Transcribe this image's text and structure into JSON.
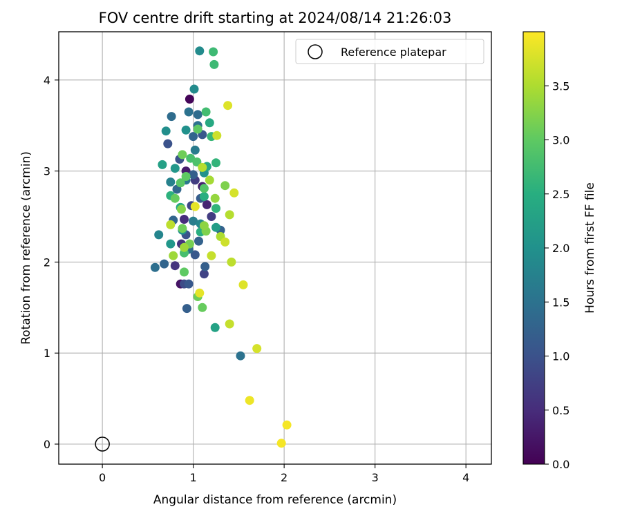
{
  "chart_data": {
    "type": "scatter",
    "title": "FOV centre drift starting at 2024/08/14 21:26:03",
    "xlabel": "Angular distance from reference (arcmin)",
    "ylabel": "Rotation from reference (arcmin)",
    "xlim": [
      -0.48,
      4.28
    ],
    "ylim": [
      -0.22,
      4.53
    ],
    "xticks": [
      0,
      1,
      2,
      3,
      4
    ],
    "yticks": [
      0,
      1,
      2,
      3,
      4
    ],
    "grid": true,
    "legend": {
      "position": "top-right",
      "entries": [
        "Reference platepar"
      ]
    },
    "reference_point": {
      "x": 0,
      "y": 0,
      "label": "Reference platepar"
    },
    "colorbar": {
      "label": "Hours from first FF file",
      "min": 0.0,
      "max": 4.0,
      "ticks": [
        "0.0",
        "0.5",
        "1.0",
        "1.5",
        "2.0",
        "2.5",
        "3.0",
        "3.5"
      ],
      "colormap": "viridis"
    },
    "series": [
      {
        "points": [
          [
            0.96,
            3.79,
            0.05
          ],
          [
            0.86,
            1.76,
            0.2
          ],
          [
            0.92,
            3.0,
            0.3
          ],
          [
            1.1,
            2.83,
            0.35
          ],
          [
            1.15,
            2.63,
            0.4
          ],
          [
            0.9,
            2.47,
            0.5
          ],
          [
            0.8,
            1.96,
            0.6
          ],
          [
            0.87,
            2.2,
            0.6
          ],
          [
            1.02,
            2.9,
            0.7
          ],
          [
            1.2,
            2.5,
            0.7
          ],
          [
            1.12,
            1.87,
            0.8
          ],
          [
            0.98,
            2.62,
            0.85
          ],
          [
            0.9,
            1.76,
            0.9
          ],
          [
            0.92,
            2.3,
            1.0
          ],
          [
            0.85,
            3.13,
            1.0
          ],
          [
            0.72,
            3.3,
            1.0
          ],
          [
            1.1,
            3.4,
            1.1
          ],
          [
            0.95,
            1.76,
            1.1
          ],
          [
            1.02,
            2.08,
            1.1
          ],
          [
            1.08,
            2.7,
            1.15
          ],
          [
            1.0,
            2.96,
            1.2
          ],
          [
            0.93,
            1.49,
            1.2
          ],
          [
            1.13,
            1.95,
            1.2
          ],
          [
            1.06,
            2.23,
            1.25
          ],
          [
            1.3,
            2.35,
            1.25
          ],
          [
            0.78,
            2.46,
            1.3
          ],
          [
            1.0,
            3.38,
            1.3
          ],
          [
            0.68,
            1.98,
            1.3
          ],
          [
            0.82,
            2.8,
            1.35
          ],
          [
            1.05,
            3.62,
            1.4
          ],
          [
            0.76,
            3.6,
            1.4
          ],
          [
            0.95,
            2.14,
            1.4
          ],
          [
            0.58,
            1.94,
            1.45
          ],
          [
            1.52,
            0.97,
            1.5
          ],
          [
            0.95,
            3.65,
            1.5
          ],
          [
            1.05,
            3.5,
            1.5
          ],
          [
            0.86,
            2.6,
            1.55
          ],
          [
            0.92,
            2.9,
            1.6
          ],
          [
            1.02,
            3.23,
            1.65
          ],
          [
            1.0,
            2.45,
            1.7
          ],
          [
            0.75,
            2.88,
            1.75
          ],
          [
            0.62,
            2.3,
            1.8
          ],
          [
            1.08,
            2.42,
            1.85
          ],
          [
            1.07,
            4.32,
            1.9
          ],
          [
            1.01,
            3.9,
            1.9
          ],
          [
            0.7,
            3.44,
            1.95
          ],
          [
            0.92,
            3.45,
            2.0
          ],
          [
            0.88,
            2.35,
            2.0
          ],
          [
            1.12,
            2.98,
            2.0
          ],
          [
            0.8,
            3.03,
            2.1
          ],
          [
            0.75,
            2.2,
            2.1
          ],
          [
            1.25,
            2.38,
            2.2
          ],
          [
            0.66,
            3.07,
            2.25
          ],
          [
            1.24,
            1.28,
            2.3
          ],
          [
            1.18,
            3.53,
            2.4
          ],
          [
            1.15,
            3.05,
            2.4
          ],
          [
            0.86,
            2.6,
            2.45
          ],
          [
            1.08,
            2.33,
            2.5
          ],
          [
            1.12,
            2.72,
            2.5
          ],
          [
            0.75,
            2.73,
            2.55
          ],
          [
            1.25,
            3.09,
            2.6
          ],
          [
            1.25,
            2.59,
            2.6
          ],
          [
            1.2,
            3.38,
            2.65
          ],
          [
            1.22,
            4.31,
            2.7
          ],
          [
            1.23,
            4.17,
            2.7
          ],
          [
            1.14,
            3.65,
            2.75
          ],
          [
            0.9,
            2.1,
            2.8
          ],
          [
            0.97,
            3.14,
            2.8
          ],
          [
            1.04,
            3.1,
            2.85
          ],
          [
            1.12,
            2.81,
            2.9
          ],
          [
            0.86,
            2.87,
            2.95
          ],
          [
            0.92,
            2.94,
            3.0
          ],
          [
            1.05,
            3.46,
            3.0
          ],
          [
            0.9,
            1.89,
            3.0
          ],
          [
            1.1,
            1.5,
            3.05
          ],
          [
            0.8,
            2.7,
            3.05
          ],
          [
            1.05,
            1.62,
            3.1
          ],
          [
            0.88,
            3.18,
            3.1
          ],
          [
            0.88,
            2.37,
            3.1
          ],
          [
            0.96,
            2.2,
            3.15
          ],
          [
            1.14,
            2.34,
            3.2
          ],
          [
            1.35,
            2.84,
            3.2
          ],
          [
            0.87,
            2.58,
            3.25
          ],
          [
            1.12,
            2.4,
            3.3
          ],
          [
            1.24,
            2.7,
            3.35
          ],
          [
            0.78,
            2.07,
            3.4
          ],
          [
            0.9,
            2.16,
            3.4
          ],
          [
            1.18,
            2.9,
            3.45
          ],
          [
            1.3,
            2.28,
            3.5
          ],
          [
            1.4,
            2.52,
            3.55
          ],
          [
            1.1,
            3.04,
            3.55
          ],
          [
            1.42,
            2.0,
            3.6
          ],
          [
            0.75,
            2.41,
            3.6
          ],
          [
            1.4,
            1.32,
            3.65
          ],
          [
            1.2,
            2.07,
            3.65
          ],
          [
            1.26,
            3.39,
            3.7
          ],
          [
            1.35,
            2.22,
            3.7
          ],
          [
            1.45,
            2.76,
            3.75
          ],
          [
            1.7,
            1.05,
            3.75
          ],
          [
            1.55,
            1.75,
            3.8
          ],
          [
            1.38,
            3.72,
            3.8
          ],
          [
            1.07,
            1.66,
            3.85
          ],
          [
            1.02,
            2.61,
            3.85
          ],
          [
            1.62,
            0.48,
            3.9
          ],
          [
            2.03,
            0.21,
            3.95
          ],
          [
            1.97,
            0.01,
            3.95
          ]
        ]
      }
    ]
  }
}
